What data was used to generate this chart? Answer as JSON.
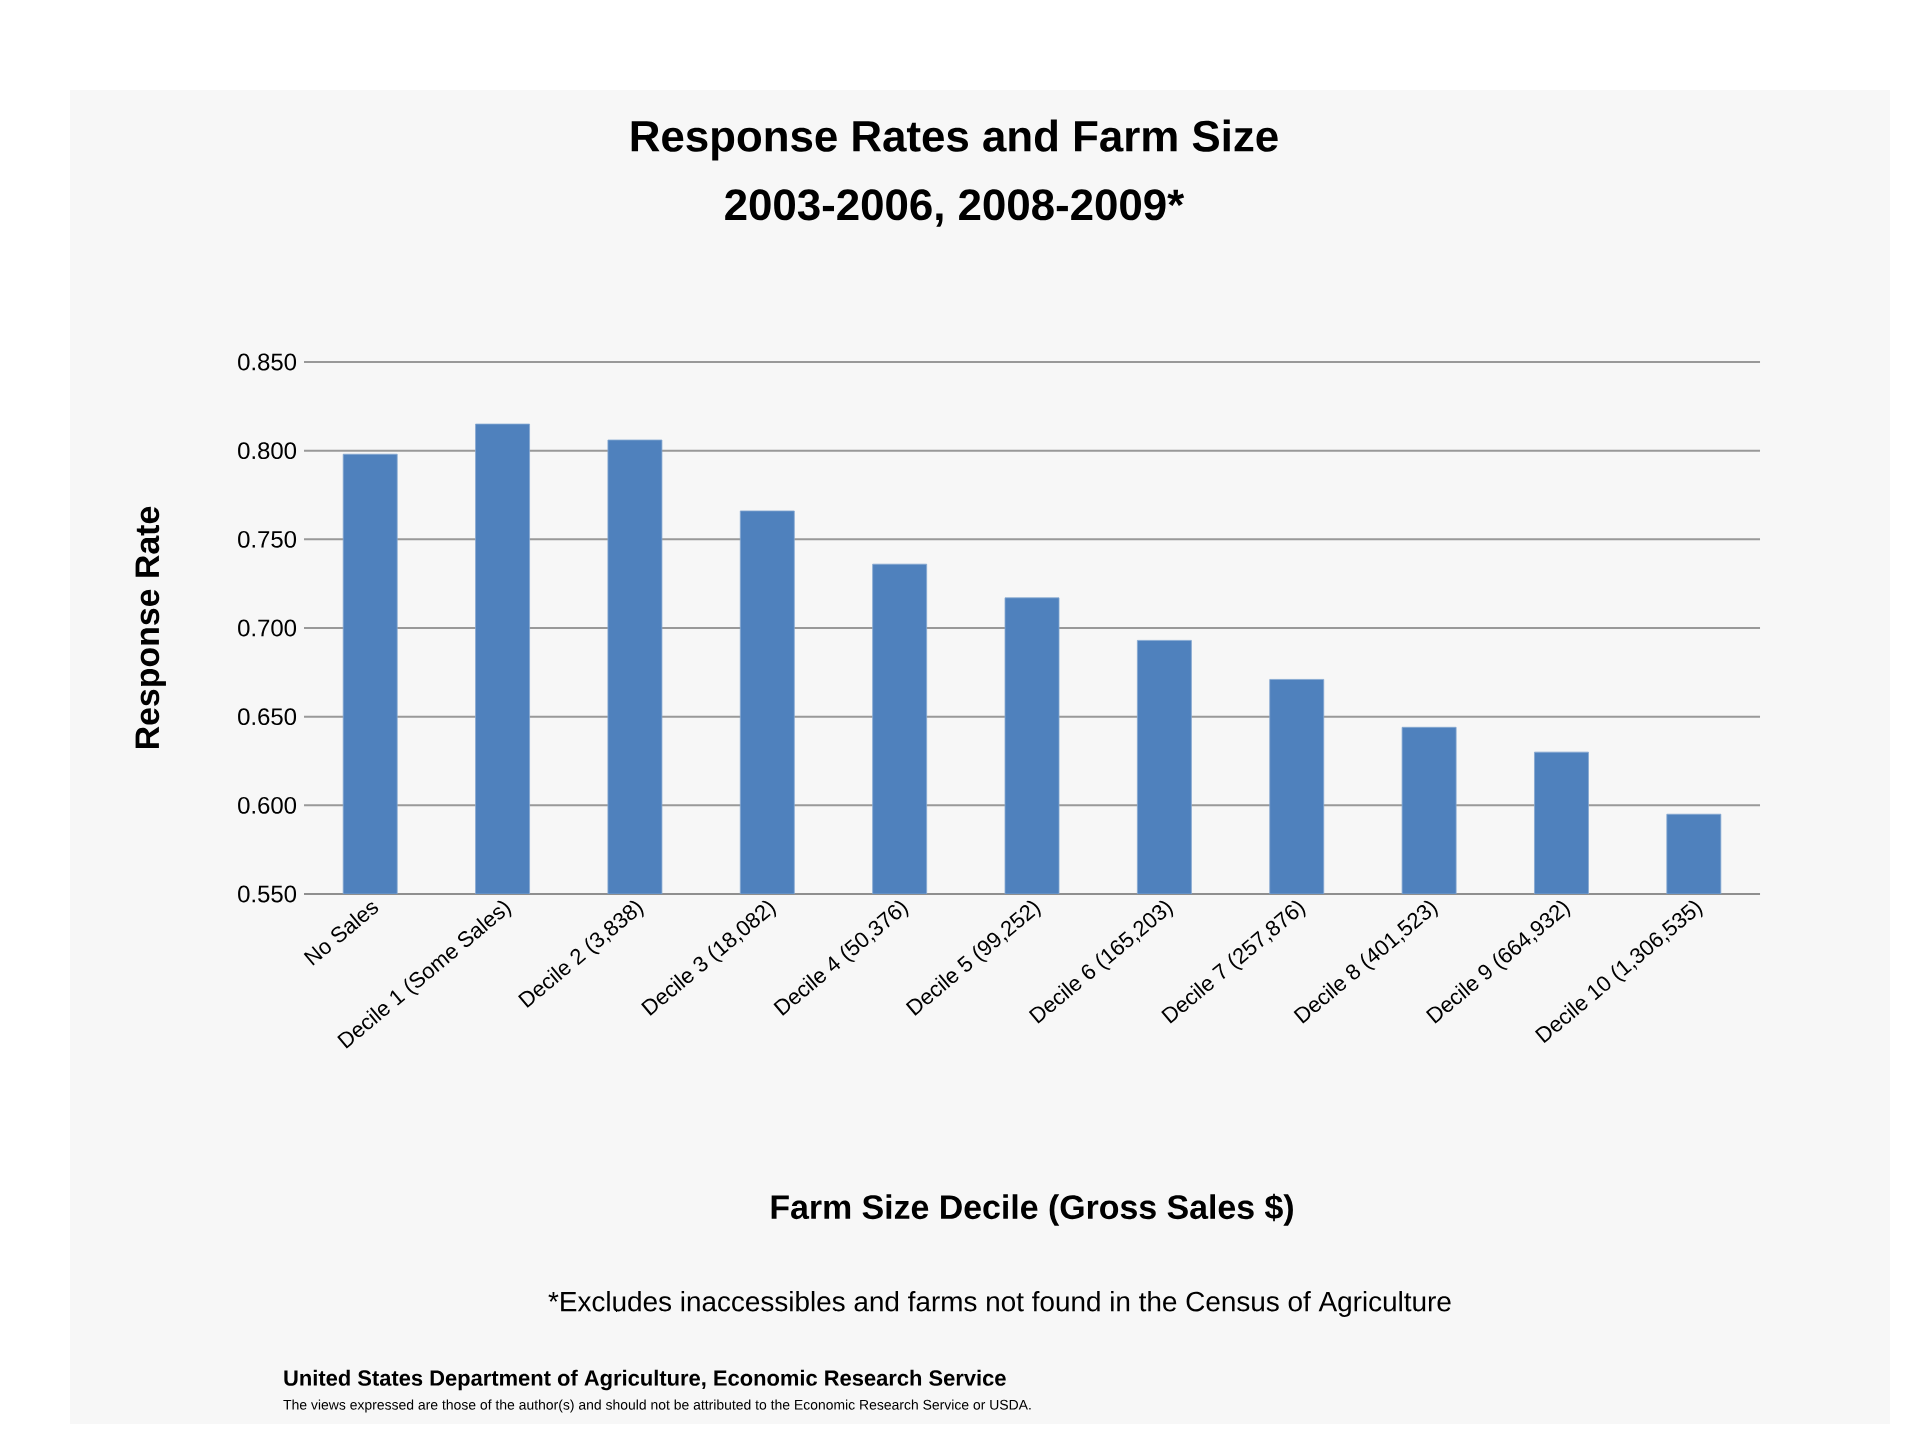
{
  "chart_data": {
    "type": "bar",
    "title": "Response Rates and Farm Size",
    "subtitle": "2003-2006, 2008-2009*",
    "xlabel": "Farm Size Decile (Gross Sales $)",
    "ylabel": "Response Rate",
    "categories": [
      "No Sales",
      "Decile 1 (Some Sales)",
      "Decile 2 (3,838)",
      "Decile 3 (18,082)",
      "Decile 4 (50,376)",
      "Decile 5 (99,252)",
      "Decile 6 (165,203)",
      "Decile 7 (257,876)",
      "Decile 8 (401,523)",
      "Decile 9 (664,932)",
      "Decile 10 (1,306,535)"
    ],
    "values": [
      0.798,
      0.815,
      0.806,
      0.766,
      0.736,
      0.717,
      0.693,
      0.671,
      0.644,
      0.63,
      0.595
    ],
    "color": "#4f81bd",
    "ylim": [
      0.55,
      0.85
    ],
    "yticks": [
      {
        "value": 0.55,
        "label": "0.550"
      },
      {
        "value": 0.6,
        "label": "0.600"
      },
      {
        "value": 0.65,
        "label": "0.650"
      },
      {
        "value": 0.7,
        "label": "0.700"
      },
      {
        "value": 0.75,
        "label": "0.750"
      },
      {
        "value": 0.8,
        "label": "0.800"
      },
      {
        "value": 0.85,
        "label": "0.850"
      }
    ],
    "grid": "y",
    "annotations": [
      "*Excludes inaccessibles and farms not found in the Census of Agriculture",
      "United States Department of Agriculture, Economic Research Service",
      "The views expressed are those of the author(s) and should not be attributed to the Economic Research Service or USDA."
    ]
  }
}
